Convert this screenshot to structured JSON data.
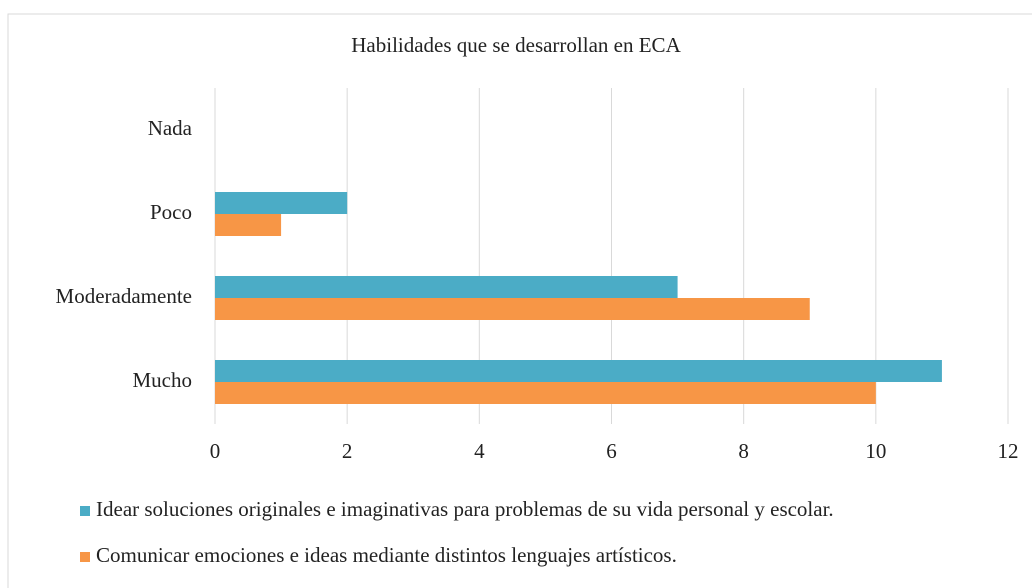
{
  "chart_data": {
    "type": "barh",
    "title": "Habilidades  que se desarrollan  en ECA",
    "categories": [
      "Nada",
      "Poco",
      "Moderadamente",
      "Mucho"
    ],
    "series": [
      {
        "name": "Idear soluciones originales e imaginativas para problemas de su vida personal y escolar.",
        "color": "#4bacc6",
        "values": [
          0,
          2,
          7,
          11
        ]
      },
      {
        "name": "Comunicar emociones e ideas mediante distintos lenguajes artísticos.",
        "color": "#f79646",
        "values": [
          0,
          1,
          9,
          10
        ]
      }
    ],
    "xlim": [
      0,
      12
    ],
    "xticks": [
      0,
      2,
      4,
      6,
      8,
      10,
      12
    ],
    "grid": true,
    "legend": "bottom"
  }
}
